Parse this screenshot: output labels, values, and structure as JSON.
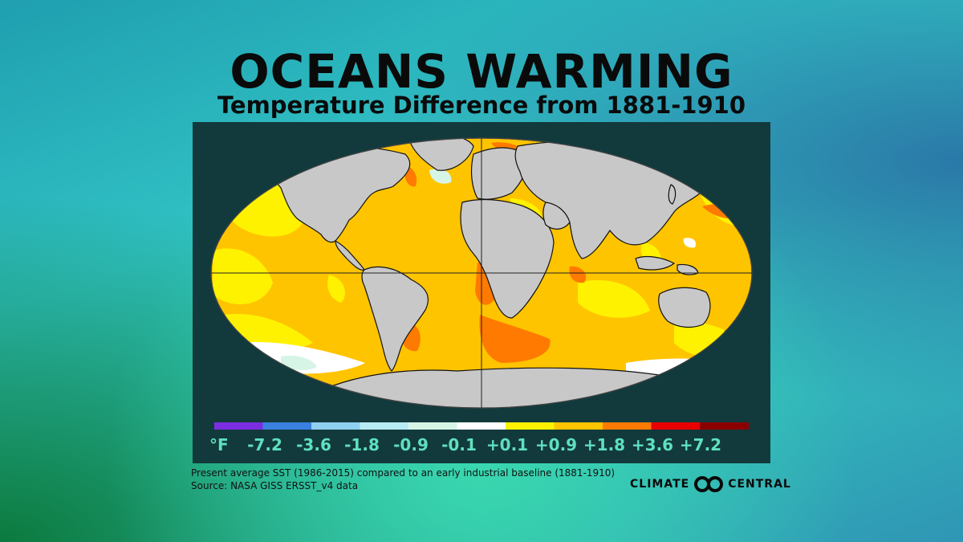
{
  "title": "OCEANS WARMING",
  "subtitle": "Temperature Difference from 1881-1910",
  "legend": {
    "unit": "°F",
    "ticks": [
      "-7.2",
      "-3.6",
      "-1.8",
      "-0.9",
      "-0.1",
      "+0.1",
      "+0.9",
      "+1.8",
      "+3.6",
      "+7.2"
    ],
    "colors": [
      "#7a2ee0",
      "#3a80e0",
      "#8fd0f0",
      "#b8ecf4",
      "#d6f5e6",
      "#ffffff",
      "#fff200",
      "#ffc400",
      "#ff7a00",
      "#e80000",
      "#8a0000"
    ]
  },
  "footer": {
    "line1": "Present average SST (1986-2015) compared to an early industrial baseline (1881-1910)",
    "line2": "Source: NASA GISS ERSST_v4 data"
  },
  "logo": {
    "left": "CLIMATE",
    "right": "CENTRAL",
    "icon": "climate-central-logo-icon"
  },
  "colors": {
    "ocean_base": "#ffc400",
    "land": "#c8c8c8",
    "panel": "#123a3c",
    "legend_text": "#5fe0c0"
  }
}
